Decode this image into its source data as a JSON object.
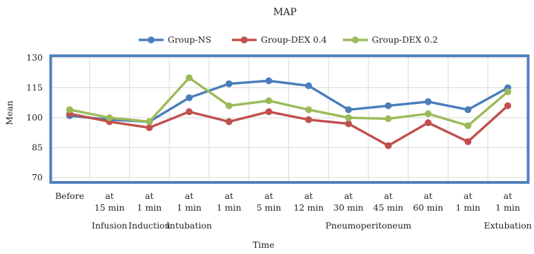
{
  "chart_data": {
    "type": "line",
    "title": "MAP",
    "xlabel": "Time",
    "ylabel": "Mean",
    "ylim": [
      70,
      130
    ],
    "yticks": [
      70,
      85,
      100,
      115,
      130
    ],
    "grid": true,
    "legend_position": "top",
    "categories": [
      [
        "Before"
      ],
      [
        "at",
        "15 min"
      ],
      [
        "at",
        "1 min"
      ],
      [
        "at",
        "1 min"
      ],
      [
        "at",
        "1 min"
      ],
      [
        "at",
        "5 min"
      ],
      [
        "at",
        "12 min"
      ],
      [
        "at",
        "30 min"
      ],
      [
        "at",
        "45 min"
      ],
      [
        "at",
        "60 min"
      ],
      [
        "at",
        "1 min"
      ],
      [
        "at",
        "1 min"
      ]
    ],
    "group_labels": [
      {
        "label": "Infusion",
        "center": 1
      },
      {
        "label": "Induction",
        "center": 2
      },
      {
        "label": "Intubation",
        "center": 3
      },
      {
        "label": "Pneumoperitoneum",
        "center": 7.5
      },
      {
        "label": "Extubation",
        "center": 11
      }
    ],
    "series": [
      {
        "name": "Group-NS",
        "color": "#4a7ebb",
        "values": [
          101,
          99,
          98,
          110,
          117,
          118.5,
          116,
          104,
          106,
          108,
          104,
          115
        ]
      },
      {
        "name": "Group-DEX 0.4",
        "color": "#c0504d",
        "values": [
          102,
          98,
          95,
          103,
          98,
          103,
          99,
          97,
          86,
          97.5,
          88,
          106
        ]
      },
      {
        "name": "Group-DEX 0.2",
        "color": "#9bbb59",
        "values": [
          104,
          100,
          98,
          120,
          106,
          108.5,
          104,
          100,
          99.5,
          102,
          96,
          113
        ]
      }
    ]
  }
}
